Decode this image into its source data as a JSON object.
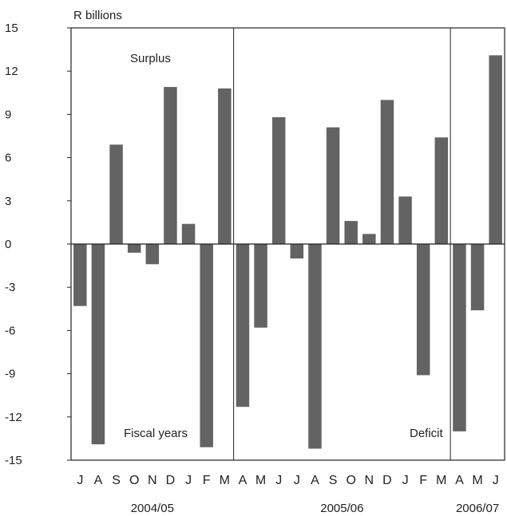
{
  "chart_data": {
    "type": "bar",
    "ylabel": "R billions",
    "ylim": [
      -15,
      15
    ],
    "yticks": [
      15,
      12,
      9,
      6,
      3,
      0,
      -3,
      -6,
      -9,
      -12,
      -15
    ],
    "grid": false,
    "categories": [
      "J",
      "A",
      "S",
      "O",
      "N",
      "D",
      "J",
      "F",
      "M",
      "A",
      "M",
      "J",
      "J",
      "A",
      "S",
      "O",
      "N",
      "D",
      "J",
      "F",
      "M",
      "A",
      "M",
      "J"
    ],
    "values": [
      -4.3,
      -13.9,
      6.9,
      -0.6,
      -1.4,
      10.9,
      1.4,
      -14.1,
      10.8,
      -11.3,
      -5.8,
      8.8,
      -1.0,
      -14.2,
      8.1,
      1.6,
      0.7,
      10.0,
      3.3,
      -9.1,
      7.4,
      -13.0,
      -4.6,
      13.1
    ],
    "bar_color": "#636363",
    "annotations": [
      "Surplus",
      "Fiscal years",
      "Deficit"
    ],
    "groups": [
      {
        "label": "2004/05",
        "start": 0,
        "count": 9
      },
      {
        "label": "2005/06",
        "start": 9,
        "count": 12
      },
      {
        "label": "2006/07",
        "start": 21,
        "count": 3
      }
    ]
  }
}
